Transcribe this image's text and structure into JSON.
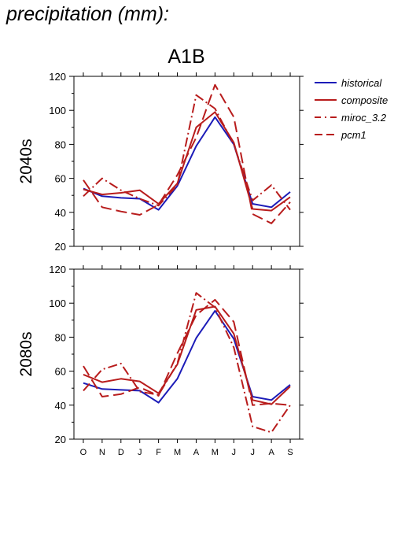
{
  "page": {
    "title": "precipitation (mm):"
  },
  "chart_data": {
    "type": "line",
    "scenario": "A1B",
    "months": [
      "O",
      "N",
      "D",
      "J",
      "F",
      "M",
      "A",
      "M",
      "J",
      "J",
      "A",
      "S"
    ],
    "ylim": [
      20,
      120
    ],
    "yticks": [
      20,
      40,
      60,
      80,
      100,
      120
    ],
    "legend_position": "top-right",
    "legend": [
      {
        "key": "historical",
        "label": "historical",
        "color": "#1c1cb8",
        "dash": "solid"
      },
      {
        "key": "composite",
        "label": "composite",
        "color": "#b81c1c",
        "dash": "solid"
      },
      {
        "key": "miroc",
        "label": "miroc_3.2",
        "color": "#b81c1c",
        "dash": "dashdot"
      },
      {
        "key": "pcm1",
        "label": "pcm1",
        "color": "#b81c1c",
        "dash": "dashed"
      }
    ],
    "panels": [
      {
        "label": "2040s",
        "series": [
          {
            "key": "historical",
            "values": [
              54,
              49.5,
              48.5,
              48,
              41.5,
              55.5,
              79,
              96,
              80,
              45,
              43,
              52
            ]
          },
          {
            "key": "composite",
            "values": [
              53.5,
              50.5,
              51.5,
              53,
              45,
              57,
              90,
              99,
              81,
              42,
              41,
              49
            ]
          },
          {
            "key": "miroc",
            "values": [
              49.5,
              60,
              53,
              48,
              44,
              56,
              109,
              101,
              80,
              47,
              56,
              41.5
            ]
          },
          {
            "key": "pcm1",
            "values": [
              59,
              43,
              40.5,
              38.5,
              44.5,
              62,
              84,
              115,
              96,
              39,
              33.5,
              46
            ]
          }
        ]
      },
      {
        "label": "2080s",
        "series": [
          {
            "key": "historical",
            "values": [
              53,
              49.5,
              49,
              48.5,
              41.5,
              55.5,
              79.5,
              95.5,
              79,
              45,
              43,
              52
            ]
          },
          {
            "key": "composite",
            "values": [
              58,
              53.5,
              55.5,
              54,
              47,
              64,
              96,
              98,
              82,
              43,
              40.5,
              51
            ]
          },
          {
            "key": "miroc",
            "values": [
              48.5,
              61,
              64.5,
              48,
              46,
              64.5,
              106,
              97.5,
              74,
              27.5,
              24,
              40
            ]
          },
          {
            "key": "pcm1",
            "values": [
              63,
              45,
              46.5,
              50.5,
              45.5,
              70.5,
              93,
              102,
              89,
              40,
              41,
              40
            ]
          }
        ]
      }
    ]
  }
}
